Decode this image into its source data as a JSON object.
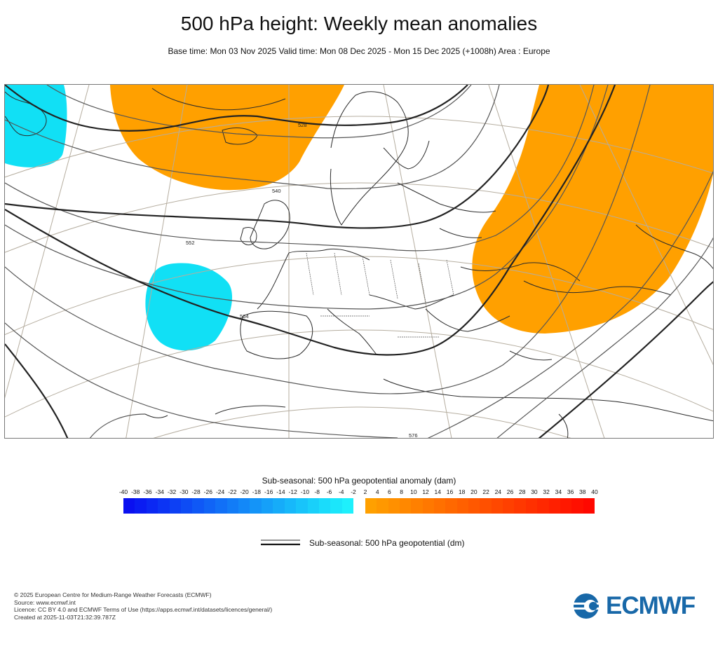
{
  "title": "500 hPa height: Weekly mean anomalies",
  "subtitle": "Base time: Mon 03 Nov 2025 Valid time: Mon 08 Dec 2025 - Mon 15 Dec 2025 (+1008h) Area : Europe",
  "map": {
    "contour_labels": [
      "528",
      "540",
      "552",
      "564",
      "576"
    ],
    "anomaly_regions": [
      {
        "name": "northwest-atlantic",
        "sign": "negative",
        "color": "#11e0f5"
      },
      {
        "name": "iceland-greenland",
        "sign": "positive",
        "color": "#ffa000"
      },
      {
        "name": "iberia-offshore",
        "sign": "negative",
        "color": "#11e0f5"
      },
      {
        "name": "eastern-europe",
        "sign": "positive",
        "color": "#ffa000"
      }
    ]
  },
  "colorbar": {
    "title": "Sub-seasonal: 500 hPa geopotential anomaly (dam)",
    "negative_ticks": [
      "-40",
      "-38",
      "-36",
      "-34",
      "-32",
      "-30",
      "-28",
      "-26",
      "-24",
      "-22",
      "-20",
      "-18",
      "-16",
      "-14",
      "-12",
      "-10",
      "-8",
      "-6",
      "-4",
      "-2"
    ],
    "positive_ticks": [
      "2",
      "4",
      "6",
      "8",
      "10",
      "12",
      "14",
      "16",
      "18",
      "20",
      "22",
      "24",
      "26",
      "28",
      "30",
      "32",
      "34",
      "36",
      "38",
      "40"
    ],
    "negative_colors": [
      "#0a10f0",
      "#0a1cf2",
      "#0b28f3",
      "#0c34f4",
      "#0d40f4",
      "#0e4cf5",
      "#0f58f6",
      "#1064f6",
      "#1170f7",
      "#127cf7",
      "#1388f8",
      "#1494f8",
      "#15a0f9",
      "#16acf9",
      "#17b8fa",
      "#18c4fa",
      "#19d0fa",
      "#1adcfb",
      "#1be6fb",
      "#1ef0fc"
    ],
    "positive_colors": [
      "#ffa000",
      "#ff9800",
      "#ff9000",
      "#ff8800",
      "#ff8000",
      "#ff7800",
      "#ff7000",
      "#ff6800",
      "#ff6000",
      "#ff5800",
      "#ff5000",
      "#ff4800",
      "#ff4000",
      "#ff3800",
      "#ff3000",
      "#ff2800",
      "#ff2000",
      "#ff1800",
      "#ff1000",
      "#ff0800"
    ]
  },
  "line_legend": {
    "label": "Sub-seasonal: 500 hPa geopotential (dm)"
  },
  "footer": {
    "copyright": "© 2025 European Centre for Medium-Range Weather Forecasts (ECMWF)",
    "source": "Source: www.ecmwf.int",
    "licence": "Licence: CC BY 4.0 and ECMWF Terms of Use (https://apps.ecmwf.int/datasets/licences/general/)",
    "created": "Created at 2025-11-03T21:32:39.787Z"
  },
  "logo": {
    "text": "ECMWF",
    "color": "#1868a8"
  }
}
